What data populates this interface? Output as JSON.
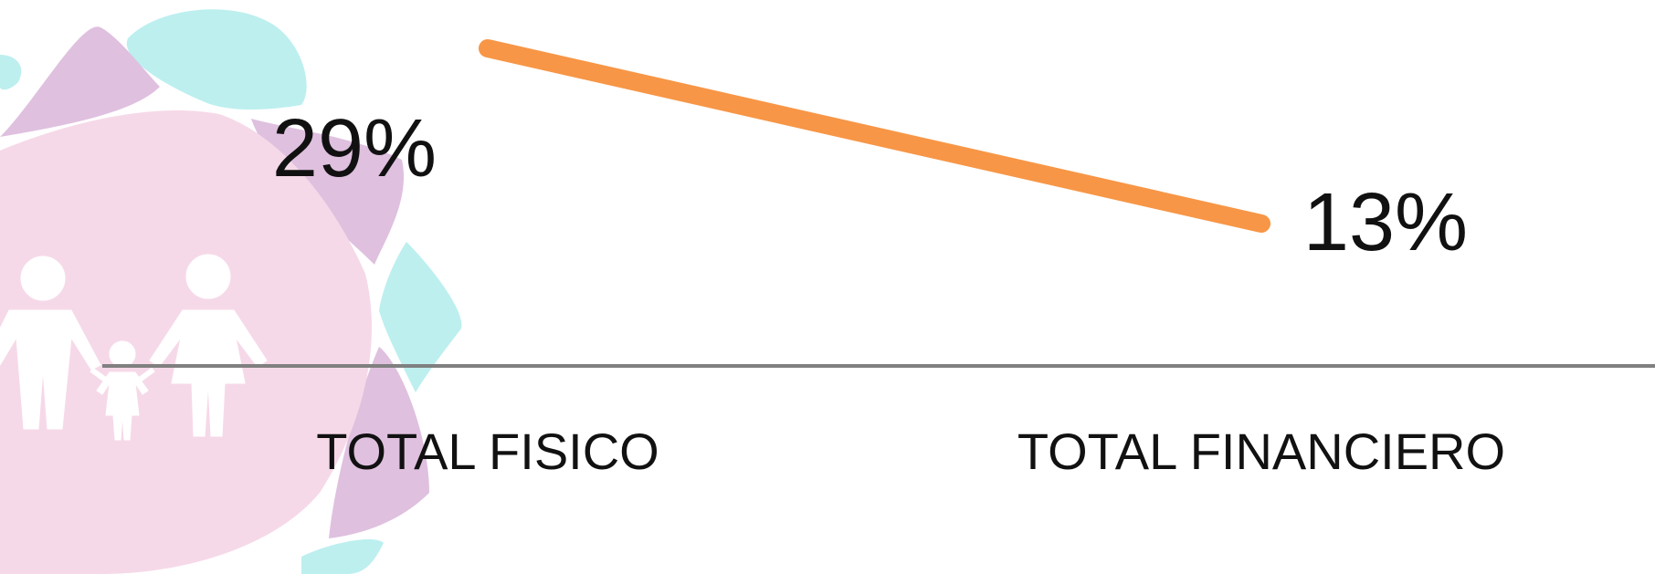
{
  "colors": {
    "line": "#F79646",
    "axis": "#808080",
    "logo_pink": "#F6D9E8",
    "logo_purple": "#DFC0DF",
    "logo_cyan": "#BDEFEF",
    "logo_figures": "#FFFFFF"
  },
  "logo": {
    "icon": "family-icon"
  },
  "chart_data": {
    "type": "line",
    "categories": [
      "TOTAL FISICO",
      "TOTAL FINANCIERO"
    ],
    "series": [
      {
        "values": [
          29,
          13
        ],
        "labels": [
          "29%",
          "13%"
        ]
      }
    ],
    "ylim": [
      0,
      35
    ],
    "grid": false,
    "legend": "none"
  }
}
